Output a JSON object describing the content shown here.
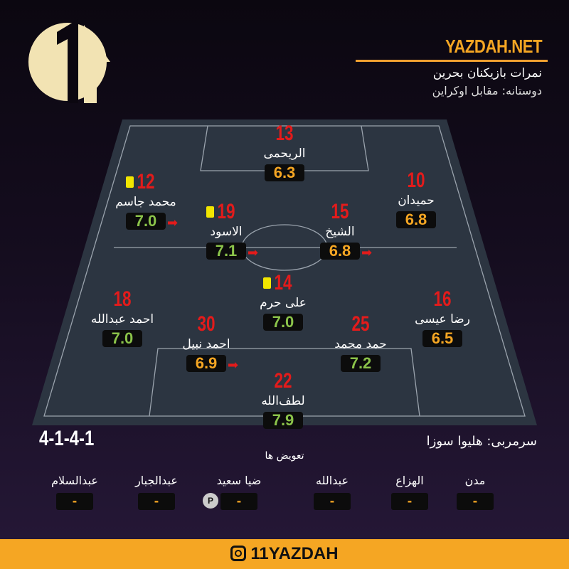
{
  "header": {
    "site": "YAZDAH.NET",
    "title": "نمرات بازیکنان بحرین",
    "subtitle": "دوستانه: مقابل اوکراین"
  },
  "colors": {
    "accent": "#f5a623",
    "good_rating": "#8bc34a",
    "mid_rating": "#f5a623",
    "number": "#e31b1b",
    "yellow_card": "#f2e600"
  },
  "players": [
    {
      "number": "13",
      "name": "الریحمی",
      "rating": "6.3",
      "card": false,
      "arrow": false
    },
    {
      "number": "12",
      "name": "محمد جاسم",
      "rating": "7.0",
      "card": true,
      "arrow": true
    },
    {
      "number": "10",
      "name": "حمیدان",
      "rating": "6.8",
      "card": false,
      "arrow": false
    },
    {
      "number": "19",
      "name": "الاسود",
      "rating": "7.1",
      "card": true,
      "arrow": true
    },
    {
      "number": "15",
      "name": "الشیخ",
      "rating": "6.8",
      "card": false,
      "arrow": true
    },
    {
      "number": "14",
      "name": "علی حرم",
      "rating": "7.0",
      "card": true,
      "arrow": false
    },
    {
      "number": "18",
      "name": "احمد عبدالله",
      "rating": "7.0",
      "card": false,
      "arrow": false
    },
    {
      "number": "16",
      "name": "رضا عیسی",
      "rating": "6.5",
      "card": false,
      "arrow": false
    },
    {
      "number": "30",
      "name": "احمد نبیل",
      "rating": "6.9",
      "card": false,
      "arrow": true
    },
    {
      "number": "25",
      "name": "حمد محمد",
      "rating": "7.2",
      "card": false,
      "arrow": false
    },
    {
      "number": "22",
      "name": "لطف‌الله",
      "rating": "7.9",
      "card": false,
      "arrow": false
    }
  ],
  "formation": "4-1-4-1",
  "coach": "سرمربی:  هلیوا سوزا",
  "subs_title": "تعویض ها",
  "subs": [
    {
      "name": "مدن",
      "rating": "-"
    },
    {
      "name": "الهزاع",
      "rating": "-"
    },
    {
      "name": "عبدالله",
      "rating": "-"
    },
    {
      "name": "ضیا سعید",
      "rating": "-",
      "badge": "P"
    },
    {
      "name": "عبدالجبار",
      "rating": "-"
    },
    {
      "name": "عبدالسلام",
      "rating": "-"
    }
  ],
  "footer": {
    "handle": "11YAZDAH",
    "icon": "instagram-icon"
  }
}
